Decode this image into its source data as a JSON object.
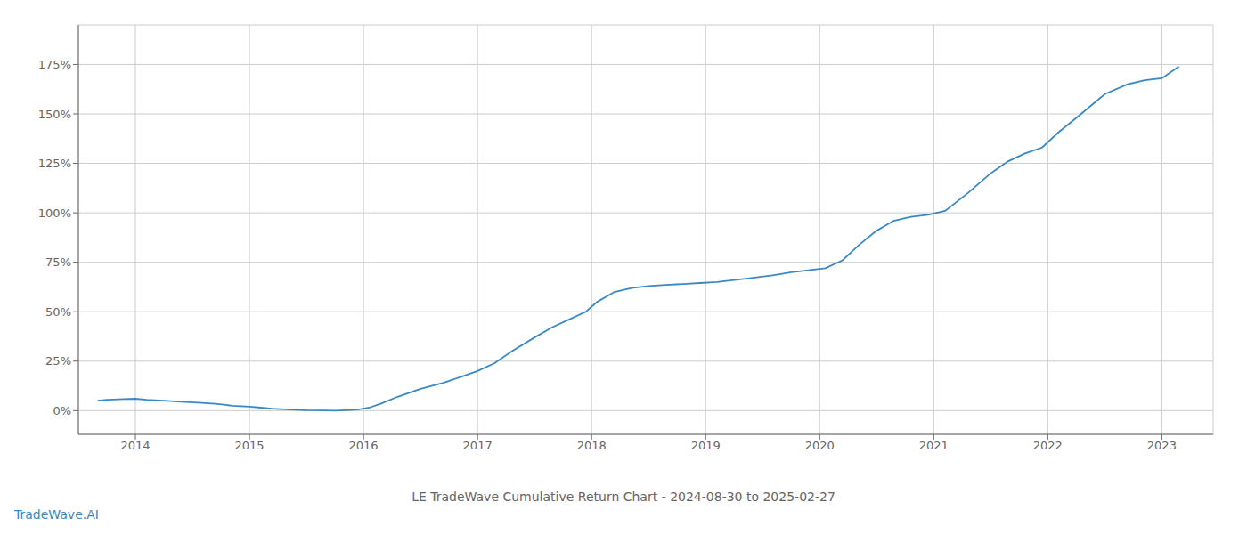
{
  "chart_data": {
    "type": "line",
    "title": "LE TradeWave Cumulative Return Chart - 2024-08-30 to 2025-02-27",
    "annotations": [
      {
        "text": "TradeWave.AI",
        "color": "#3a88c4"
      }
    ],
    "color": "#3a88c4",
    "grid": true,
    "x": [
      2013.67,
      2013.75,
      2013.9,
      2014.0,
      2014.1,
      2014.25,
      2014.4,
      2014.55,
      2014.7,
      2014.85,
      2015.0,
      2015.1,
      2015.2,
      2015.35,
      2015.5,
      2015.65,
      2015.75,
      2015.85,
      2015.95,
      2016.05,
      2016.15,
      2016.3,
      2016.5,
      2016.7,
      2016.85,
      2017.0,
      2017.15,
      2017.3,
      2017.5,
      2017.65,
      2017.8,
      2017.95,
      2018.05,
      2018.2,
      2018.35,
      2018.5,
      2018.65,
      2018.8,
      2018.95,
      2019.1,
      2019.25,
      2019.4,
      2019.6,
      2019.75,
      2019.9,
      2020.05,
      2020.2,
      2020.35,
      2020.5,
      2020.65,
      2020.8,
      2020.95,
      2021.1,
      2021.3,
      2021.5,
      2021.65,
      2021.8,
      2021.95,
      2022.1,
      2022.25,
      2022.5,
      2022.7,
      2022.85,
      2023.0,
      2023.15
    ],
    "values": [
      5.0,
      5.5,
      5.8,
      6.0,
      5.5,
      5.0,
      4.5,
      4.0,
      3.5,
      2.5,
      2.0,
      1.5,
      1.0,
      0.5,
      0.2,
      0.1,
      0.0,
      0.2,
      0.5,
      1.5,
      3.5,
      7.0,
      11.0,
      14.0,
      17.0,
      20.0,
      24.0,
      30.0,
      37.0,
      42.0,
      46.0,
      50.0,
      55.0,
      60.0,
      62.0,
      63.0,
      63.5,
      64.0,
      64.5,
      65.0,
      66.0,
      67.0,
      68.5,
      70.0,
      71.0,
      72.0,
      76.0,
      84.0,
      91.0,
      96.0,
      98.0,
      99.0,
      101.0,
      110.0,
      120.0,
      126.0,
      130.0,
      133.0,
      141.0,
      148.0,
      160.0,
      165.0,
      167.0,
      168.0,
      174.0
    ],
    "xlim": [
      2013.5,
      2023.45
    ],
    "ylim": [
      -12,
      195
    ],
    "xticks": [
      2014,
      2015,
      2016,
      2017,
      2018,
      2019,
      2020,
      2021,
      2022,
      2023
    ],
    "yticks": [
      {
        "value": 0,
        "label": "0%"
      },
      {
        "value": 25,
        "label": "25%"
      },
      {
        "value": 50,
        "label": "50%"
      },
      {
        "value": 75,
        "label": "75%"
      },
      {
        "value": 100,
        "label": "100%"
      },
      {
        "value": 125,
        "label": "125%"
      },
      {
        "value": 150,
        "label": "150%"
      },
      {
        "value": 175,
        "label": "175%"
      }
    ]
  }
}
